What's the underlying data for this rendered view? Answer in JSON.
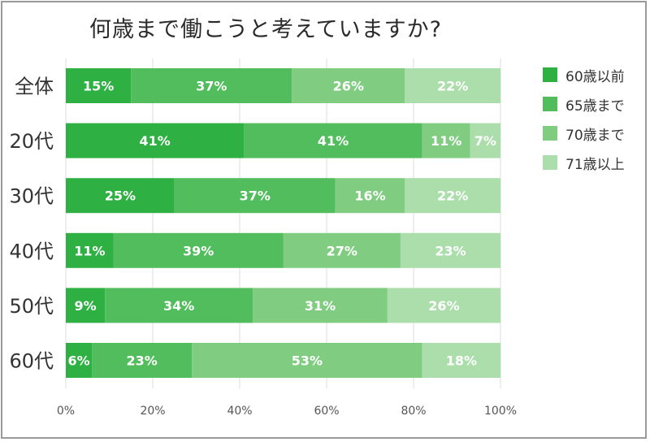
{
  "chart_data": {
    "type": "bar",
    "orientation": "horizontal",
    "stacked": true,
    "title": "何歳まで働こうと考えていますか?",
    "categories": [
      "全体",
      "20代",
      "30代",
      "40代",
      "50代",
      "60代"
    ],
    "series": [
      {
        "name": "60歳以前",
        "color": "#2eb043",
        "values": [
          15,
          41,
          25,
          11,
          9,
          6
        ]
      },
      {
        "name": "65歳まで",
        "color": "#52bd5c",
        "values": [
          37,
          41,
          37,
          39,
          34,
          23
        ]
      },
      {
        "name": "70歳まで",
        "color": "#80cd82",
        "values": [
          26,
          11,
          16,
          27,
          31,
          53
        ]
      },
      {
        "name": "71歳以上",
        "color": "#abdeaa",
        "values": [
          22,
          7,
          22,
          23,
          26,
          18
        ]
      }
    ],
    "xlim": [
      0,
      100
    ],
    "xticks": [
      "0%",
      "20%",
      "40%",
      "60%",
      "80%",
      "100%"
    ],
    "grid": true,
    "legend": "right"
  }
}
